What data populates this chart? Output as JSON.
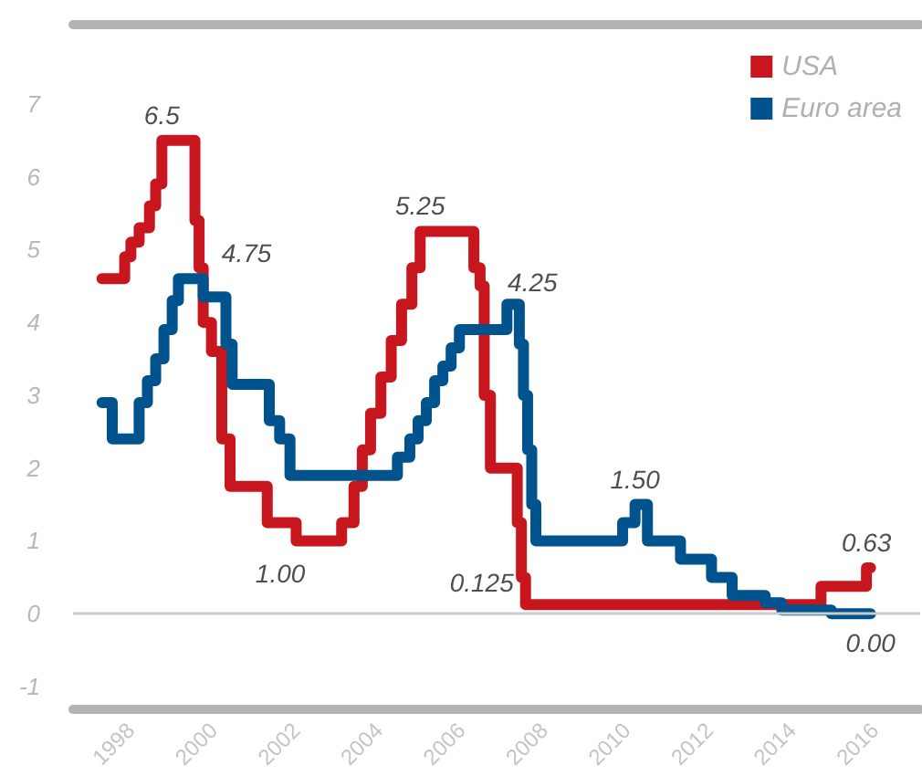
{
  "chart_data": {
    "type": "step",
    "xlim": [
      1996.6,
      2017.1
    ],
    "xticks": [
      1998,
      2000,
      2002,
      2004,
      2006,
      2008,
      2010,
      2012,
      2014,
      2016
    ],
    "ylim": [
      -1.3,
      8.1
    ],
    "yticks": [
      -1,
      0,
      1,
      2,
      3,
      4,
      5,
      6,
      7
    ],
    "grid": false,
    "legend": "top right",
    "line_style": "solid",
    "marker": "none",
    "ref_lines": [
      {
        "axis": "y",
        "value": 0,
        "color": "#cccccc"
      }
    ],
    "series": [
      {
        "name": "USA",
        "color": "#c8161e",
        "x": [
          1997.3,
          1997.85,
          1998.0,
          1998.2,
          1998.45,
          1998.6,
          1998.75,
          1999.55,
          1999.65,
          1999.75,
          1999.95,
          2000.2,
          2000.4,
          2001.3,
          2002.0,
          2003.1,
          2003.4,
          2003.6,
          2003.8,
          2004.05,
          2004.3,
          2004.55,
          2004.8,
          2005.0,
          2006.3,
          2006.45,
          2006.55,
          2006.7,
          2007.35,
          2007.45,
          2007.55,
          2014.7,
          2015.8,
          2015.9
        ],
        "values": [
          4.6,
          4.9,
          5.1,
          5.3,
          5.6,
          5.9,
          6.5,
          5.4,
          4.75,
          4.0,
          3.6,
          2.4,
          1.75,
          1.25,
          1.0,
          1.25,
          1.75,
          2.25,
          2.75,
          3.25,
          3.75,
          4.25,
          4.75,
          5.25,
          4.75,
          4.5,
          3.0,
          2.0,
          1.25,
          0.5,
          0.125,
          0.375,
          0.63,
          0.63
        ]
      },
      {
        "name": "Euro area",
        "color": "#00538c",
        "x": [
          1997.3,
          1997.55,
          1998.2,
          1998.4,
          1998.6,
          1998.8,
          1999.0,
          1999.15,
          1999.75,
          2000.3,
          2000.45,
          2001.35,
          2001.6,
          2001.85,
          2004.45,
          2004.75,
          2004.95,
          2005.15,
          2005.35,
          2005.55,
          2005.75,
          2005.95,
          2007.1,
          2007.4,
          2007.5,
          2007.6,
          2007.7,
          2007.8,
          2009.9,
          2010.2,
          2010.5,
          2011.3,
          2012.05,
          2012.55,
          2013.35,
          2013.75,
          2014.95,
          2015.9
        ],
        "values": [
          2.9,
          2.4,
          2.9,
          3.2,
          3.5,
          3.9,
          4.3,
          4.6,
          4.35,
          3.7,
          3.15,
          2.65,
          2.4,
          1.9,
          2.15,
          2.4,
          2.65,
          2.9,
          3.2,
          3.4,
          3.65,
          3.9,
          4.25,
          3.7,
          3.0,
          2.25,
          1.5,
          1.0,
          1.25,
          1.5,
          1.0,
          0.75,
          0.5,
          0.25,
          0.15,
          0.05,
          0.0,
          0.0
        ]
      }
    ],
    "annotations": [
      {
        "text": "6.5",
        "x": 1998.75,
        "y": 6.5
      },
      {
        "text": "4.75",
        "x": 1999.65,
        "y": 4.75
      },
      {
        "text": "1.00",
        "x": 2002.5,
        "y": 1.0
      },
      {
        "text": "5.25",
        "x": 2005.0,
        "y": 5.25
      },
      {
        "text": "4.25",
        "x": 2007.1,
        "y": 4.25
      },
      {
        "text": "0.125",
        "x": 2007.55,
        "y": 0.125
      },
      {
        "text": "1.50",
        "x": 2010.2,
        "y": 1.5
      },
      {
        "text": "0.63",
        "x": 2015.8,
        "y": 0.63
      },
      {
        "text": "0.00",
        "x": 2015.9,
        "y": 0.0
      }
    ]
  }
}
